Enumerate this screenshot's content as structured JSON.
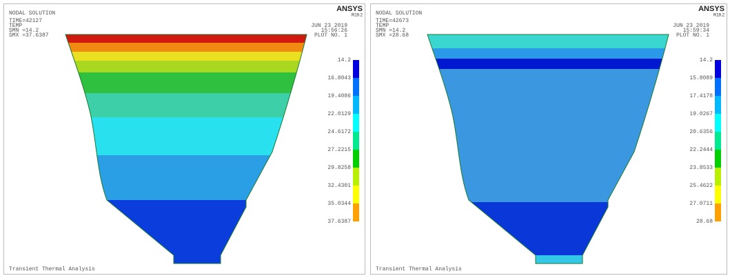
{
  "panels": [
    {
      "header": {
        "title": "NODAL SOLUTION",
        "time": "TIME=42127",
        "quantity": "TEMP",
        "smn": "SMN =14.2",
        "smx": "SMX =37.6387"
      },
      "brand": {
        "name": "ANSYS",
        "version": "R19.2"
      },
      "stamp": {
        "date": "JUN 23 2019",
        "time": "15:56:26",
        "plot": "PLOT NO.   1"
      },
      "legend": [
        "14.2",
        "16.8043",
        "19.4086",
        "22.0129",
        "24.6172",
        "27.2215",
        "29.8258",
        "32.4301",
        "35.0344",
        "37.6387"
      ],
      "footer": "Transient Thermal Analysis"
    },
    {
      "header": {
        "title": "NODAL SOLUTION",
        "time": "TIME=42673",
        "quantity": "TEMP",
        "smn": "SMN =14.2",
        "smx": "SMX =28.68"
      },
      "brand": {
        "name": "ANSYS",
        "version": "R19.2"
      },
      "stamp": {
        "date": "JUN 23 2019",
        "time": "15:59:34",
        "plot": "PLOT NO.   1"
      },
      "legend": [
        "14.2",
        "15.8089",
        "17.4178",
        "19.0267",
        "20.6356",
        "22.2444",
        "23.8533",
        "25.4622",
        "27.0711",
        "28.68"
      ],
      "footer": "Transient Thermal Analysis"
    }
  ]
}
